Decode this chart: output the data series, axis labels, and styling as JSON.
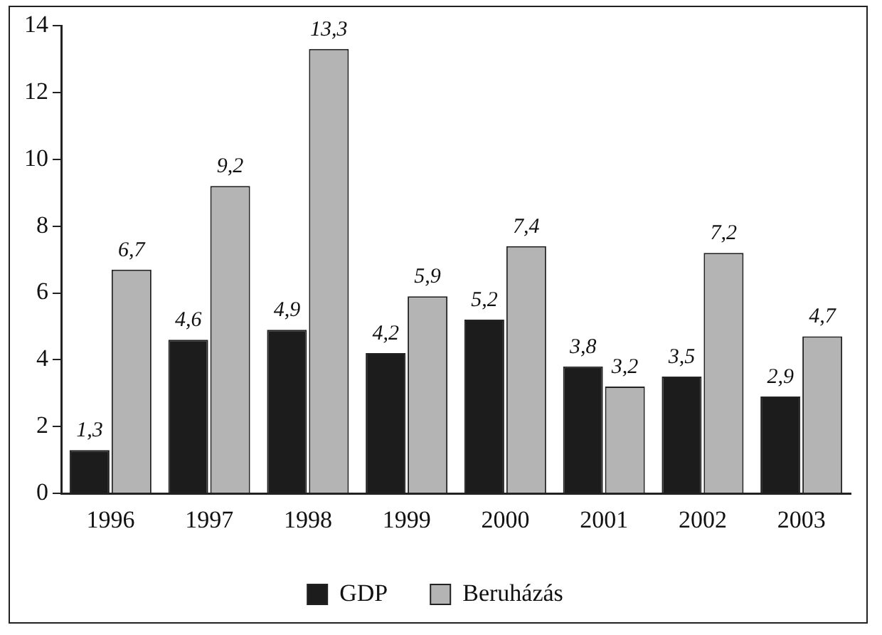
{
  "chart_data": {
    "type": "bar",
    "categories": [
      "1996",
      "1997",
      "1998",
      "1999",
      "2000",
      "2001",
      "2002",
      "2003"
    ],
    "series": [
      {
        "name": "GDP",
        "color": "#1c1c1c",
        "values": [
          1.3,
          4.6,
          4.9,
          4.2,
          5.2,
          3.8,
          3.5,
          2.9
        ],
        "value_labels": [
          "1,3",
          "4,6",
          "4,9",
          "4,2",
          "5,2",
          "3,8",
          "3,5",
          "2,9"
        ]
      },
      {
        "name": "Beruházás",
        "color": "#b4b4b4",
        "values": [
          6.7,
          9.2,
          13.3,
          5.9,
          7.4,
          3.2,
          7.2,
          4.7
        ],
        "value_labels": [
          "6,7",
          "9,2",
          "13,3",
          "5,9",
          "7,4",
          "3,2",
          "7,2",
          "4,7"
        ]
      }
    ],
    "ylim": [
      0,
      14
    ],
    "yticks": [
      0,
      2,
      4,
      6,
      8,
      10,
      12,
      14
    ],
    "grid": false,
    "legend": "bottom"
  }
}
